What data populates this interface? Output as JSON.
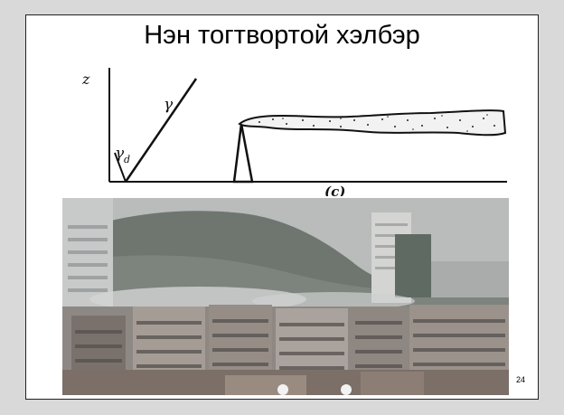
{
  "slide": {
    "title": "Нэн тогтвортой хэлбэр",
    "page_number": "24"
  },
  "diagram": {
    "axis_label_z": "z",
    "label_gamma": "γ",
    "label_gamma_d": "γ",
    "label_gamma_d_subscript": "d",
    "caption": "(c)"
  },
  "colors": {
    "slide_bg": "#ffffff",
    "plume_outline": "#1a1a1a",
    "sky": "#b9bcbb",
    "hills": "#6f7670"
  }
}
